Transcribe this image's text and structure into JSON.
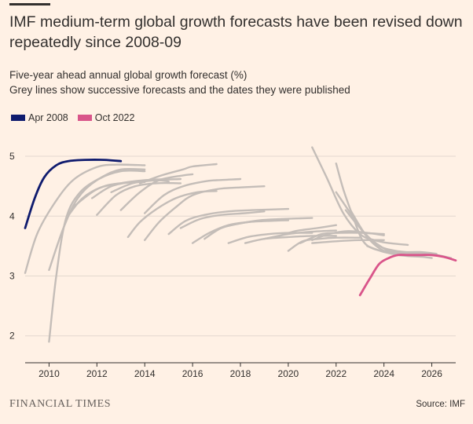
{
  "header": {
    "title": "IMF medium-term global growth forecasts have been revised down repeatedly since 2008-09",
    "subtitle_line1": "Five-year ahead annual global growth forecast (%)",
    "subtitle_line2": "Grey lines show successive forecasts and the dates they were published"
  },
  "legend": [
    {
      "label": "Apr 2008",
      "color": "#0f1b6e"
    },
    {
      "label": "Oct 2022",
      "color": "#d9558a"
    }
  ],
  "footer": {
    "brand": "FINANCIAL TIMES",
    "source": "Source: IMF"
  },
  "colors": {
    "background": "#fff1e5",
    "grey_line": "#c4bdb8",
    "grid": "#e3d8ce"
  },
  "chart_data": {
    "type": "line",
    "title": "IMF medium-term global growth forecasts have been revised down repeatedly since 2008-09",
    "xlabel": "",
    "ylabel": "Five-year ahead annual global growth forecast (%)",
    "xlim": [
      2009,
      2027
    ],
    "ylim": [
      1.55,
      5.25
    ],
    "xticks": [
      2010,
      2012,
      2014,
      2016,
      2018,
      2020,
      2022,
      2024,
      2026
    ],
    "yticks": [
      2,
      3,
      4,
      5
    ],
    "highlight_series": [
      {
        "name": "Apr 2008",
        "color": "#0f1b6e",
        "points": [
          [
            2009,
            3.8
          ],
          [
            2009.4,
            4.3
          ],
          [
            2009.8,
            4.65
          ],
          [
            2010.3,
            4.85
          ],
          [
            2010.8,
            4.92
          ],
          [
            2011.5,
            4.94
          ],
          [
            2012.3,
            4.94
          ],
          [
            2013,
            4.92
          ]
        ]
      },
      {
        "name": "Oct 2022",
        "color": "#d9558a",
        "points": [
          [
            2023,
            2.68
          ],
          [
            2023.4,
            2.95
          ],
          [
            2023.8,
            3.2
          ],
          [
            2024.2,
            3.3
          ],
          [
            2024.6,
            3.35
          ],
          [
            2025,
            3.35
          ],
          [
            2025.5,
            3.35
          ],
          [
            2026,
            3.35
          ],
          [
            2026.5,
            3.32
          ],
          [
            2027,
            3.26
          ]
        ]
      }
    ],
    "grey_series": [
      {
        "name": "f2009a",
        "points": [
          [
            2009,
            3.05
          ],
          [
            2009.5,
            3.7
          ],
          [
            2010.2,
            4.2
          ],
          [
            2011,
            4.6
          ],
          [
            2012,
            4.82
          ],
          [
            2012.8,
            4.86
          ],
          [
            2014,
            4.85
          ]
        ]
      },
      {
        "name": "f2009b",
        "points": [
          [
            2010,
            1.9
          ],
          [
            2010.3,
            3.0
          ],
          [
            2010.7,
            3.95
          ],
          [
            2011.3,
            4.4
          ],
          [
            2012.2,
            4.65
          ],
          [
            2013,
            4.78
          ],
          [
            2014,
            4.78
          ]
        ]
      },
      {
        "name": "f2010a",
        "points": [
          [
            2010,
            3.1
          ],
          [
            2010.6,
            3.8
          ],
          [
            2011.2,
            4.3
          ],
          [
            2012,
            4.6
          ],
          [
            2013,
            4.75
          ],
          [
            2014,
            4.75
          ]
        ]
      },
      {
        "name": "f2010b",
        "points": [
          [
            2010.7,
            3.95
          ],
          [
            2011.4,
            4.3
          ],
          [
            2012.3,
            4.5
          ],
          [
            2013.3,
            4.56
          ],
          [
            2014,
            4.57
          ]
        ]
      },
      {
        "name": "f2011a",
        "points": [
          [
            2011,
            4.15
          ],
          [
            2012,
            4.45
          ],
          [
            2013,
            4.55
          ],
          [
            2014,
            4.6
          ],
          [
            2015,
            4.62
          ]
        ]
      },
      {
        "name": "f2011b",
        "points": [
          [
            2011.8,
            4.3
          ],
          [
            2012.6,
            4.5
          ],
          [
            2013.6,
            4.58
          ],
          [
            2014.5,
            4.6
          ],
          [
            2015,
            4.58
          ]
        ]
      },
      {
        "name": "f2012a",
        "points": [
          [
            2012,
            4.02
          ],
          [
            2012.8,
            4.35
          ],
          [
            2013.6,
            4.5
          ],
          [
            2014.5,
            4.55
          ],
          [
            2015.5,
            4.55
          ]
        ]
      },
      {
        "name": "f2012b",
        "points": [
          [
            2012.6,
            4.4
          ],
          [
            2013.5,
            4.55
          ],
          [
            2014.5,
            4.6
          ],
          [
            2015.5,
            4.62
          ]
        ]
      },
      {
        "name": "f2013a",
        "points": [
          [
            2013,
            4.1
          ],
          [
            2013.8,
            4.4
          ],
          [
            2014.6,
            4.6
          ],
          [
            2015.6,
            4.68
          ],
          [
            2016,
            4.7
          ]
        ]
      },
      {
        "name": "f2013b",
        "points": [
          [
            2013.8,
            4.55
          ],
          [
            2014.7,
            4.68
          ],
          [
            2015.6,
            4.78
          ],
          [
            2016,
            4.83
          ],
          [
            2017,
            4.87
          ]
        ]
      },
      {
        "name": "f2014a",
        "points": [
          [
            2014,
            4.05
          ],
          [
            2014.8,
            4.35
          ],
          [
            2015.6,
            4.5
          ],
          [
            2016.5,
            4.58
          ],
          [
            2017,
            4.6
          ],
          [
            2018,
            4.62
          ]
        ]
      },
      {
        "name": "f2014b",
        "points": [
          [
            2013.3,
            3.65
          ],
          [
            2013.8,
            3.9
          ],
          [
            2014.5,
            4.12
          ],
          [
            2015.3,
            4.3
          ],
          [
            2016.2,
            4.4
          ],
          [
            2017,
            4.42
          ]
        ]
      },
      {
        "name": "f2015a",
        "points": [
          [
            2014,
            3.6
          ],
          [
            2014.6,
            3.9
          ],
          [
            2015.3,
            4.15
          ],
          [
            2016,
            4.35
          ],
          [
            2017,
            4.45
          ],
          [
            2018,
            4.48
          ],
          [
            2019,
            4.5
          ]
        ]
      },
      {
        "name": "f2016a",
        "points": [
          [
            2015.5,
            3.8
          ],
          [
            2016.3,
            3.95
          ],
          [
            2017.2,
            4.02
          ],
          [
            2018.2,
            4.05
          ],
          [
            2019,
            4.08
          ]
        ]
      },
      {
        "name": "f2016b",
        "points": [
          [
            2015,
            3.7
          ],
          [
            2015.7,
            3.92
          ],
          [
            2016.5,
            4.02
          ],
          [
            2017.5,
            4.08
          ],
          [
            2018.5,
            4.1
          ],
          [
            2020,
            4.12
          ]
        ]
      },
      {
        "name": "f2017a",
        "points": [
          [
            2016,
            3.55
          ],
          [
            2016.7,
            3.72
          ],
          [
            2017.5,
            3.85
          ],
          [
            2018.3,
            3.9
          ],
          [
            2019.2,
            3.92
          ],
          [
            2020,
            3.93
          ]
        ]
      },
      {
        "name": "f2017b",
        "points": [
          [
            2016.5,
            3.62
          ],
          [
            2017.2,
            3.8
          ],
          [
            2018,
            3.88
          ],
          [
            2019,
            3.93
          ],
          [
            2020,
            3.95
          ]
        ]
      },
      {
        "name": "f2018a",
        "points": [
          [
            2017.3,
            3.82
          ],
          [
            2018,
            3.88
          ],
          [
            2018.8,
            3.93
          ],
          [
            2019.6,
            3.95
          ],
          [
            2021,
            3.97
          ]
        ]
      },
      {
        "name": "f2018b",
        "points": [
          [
            2017.5,
            3.55
          ],
          [
            2018.3,
            3.65
          ],
          [
            2019.2,
            3.7
          ],
          [
            2020,
            3.72
          ],
          [
            2021,
            3.72
          ]
        ]
      },
      {
        "name": "f2019a",
        "points": [
          [
            2018.2,
            3.55
          ],
          [
            2019,
            3.62
          ],
          [
            2020,
            3.65
          ],
          [
            2021,
            3.67
          ],
          [
            2022,
            3.67
          ]
        ]
      },
      {
        "name": "f2019b",
        "points": [
          [
            2019,
            3.62
          ],
          [
            2020,
            3.7
          ],
          [
            2021,
            3.74
          ],
          [
            2022,
            3.76
          ]
        ]
      },
      {
        "name": "f2020a",
        "points": [
          [
            2019.5,
            3.65
          ],
          [
            2020.3,
            3.75
          ],
          [
            2021.2,
            3.8
          ],
          [
            2022,
            3.85
          ]
        ]
      },
      {
        "name": "f2020b",
        "points": [
          [
            2020,
            3.42
          ],
          [
            2020.6,
            3.58
          ],
          [
            2021.3,
            3.62
          ],
          [
            2022,
            3.64
          ],
          [
            2023,
            3.64
          ]
        ]
      },
      {
        "name": "f2021a",
        "points": [
          [
            2021,
            5.15
          ],
          [
            2021.6,
            4.65
          ],
          [
            2022.3,
            4.05
          ],
          [
            2023,
            3.7
          ],
          [
            2023.6,
            3.6
          ],
          [
            2024.2,
            3.55
          ],
          [
            2025,
            3.52
          ]
        ]
      },
      {
        "name": "f2021b",
        "points": [
          [
            2020.5,
            3.55
          ],
          [
            2021.4,
            3.7
          ],
          [
            2022.2,
            3.72
          ],
          [
            2023,
            3.72
          ],
          [
            2024,
            3.7
          ]
        ]
      },
      {
        "name": "f2021c",
        "points": [
          [
            2021,
            3.6
          ],
          [
            2021.7,
            3.7
          ],
          [
            2022.5,
            3.75
          ],
          [
            2023.3,
            3.72
          ],
          [
            2024,
            3.68
          ]
        ]
      },
      {
        "name": "f2021d",
        "points": [
          [
            2021,
            3.55
          ],
          [
            2022,
            3.58
          ],
          [
            2023,
            3.6
          ],
          [
            2024,
            3.6
          ]
        ]
      },
      {
        "name": "f2022a",
        "points": [
          [
            2022,
            4.88
          ],
          [
            2022.3,
            4.45
          ],
          [
            2022.7,
            4.0
          ],
          [
            2023.1,
            3.6
          ],
          [
            2023.6,
            3.45
          ],
          [
            2024.5,
            3.4
          ],
          [
            2025.5,
            3.4
          ],
          [
            2026.2,
            3.37
          ]
        ]
      },
      {
        "name": "f2022b",
        "points": [
          [
            2022,
            4.4
          ],
          [
            2022.6,
            4.05
          ],
          [
            2023.2,
            3.7
          ],
          [
            2023.8,
            3.5
          ],
          [
            2024.5,
            3.42
          ],
          [
            2025.5,
            3.38
          ],
          [
            2026,
            3.35
          ]
        ]
      },
      {
        "name": "f2022c",
        "points": [
          [
            2022.6,
            4.1
          ],
          [
            2023.3,
            3.65
          ],
          [
            2024,
            3.42
          ],
          [
            2024.8,
            3.38
          ],
          [
            2025.5,
            3.36
          ],
          [
            2026.2,
            3.35
          ],
          [
            2026.8,
            3.3
          ]
        ]
      },
      {
        "name": "f2023a",
        "points": [
          [
            2023.3,
            3.5
          ],
          [
            2024,
            3.4
          ],
          [
            2024.8,
            3.34
          ],
          [
            2025.6,
            3.32
          ],
          [
            2026,
            3.3
          ]
        ]
      },
      {
        "name": "f2023b",
        "points": [
          [
            2022.4,
            4.1
          ],
          [
            2022.9,
            3.85
          ],
          [
            2023.5,
            3.6
          ],
          [
            2024.3,
            3.4
          ],
          [
            2025,
            3.35
          ]
        ]
      }
    ]
  }
}
